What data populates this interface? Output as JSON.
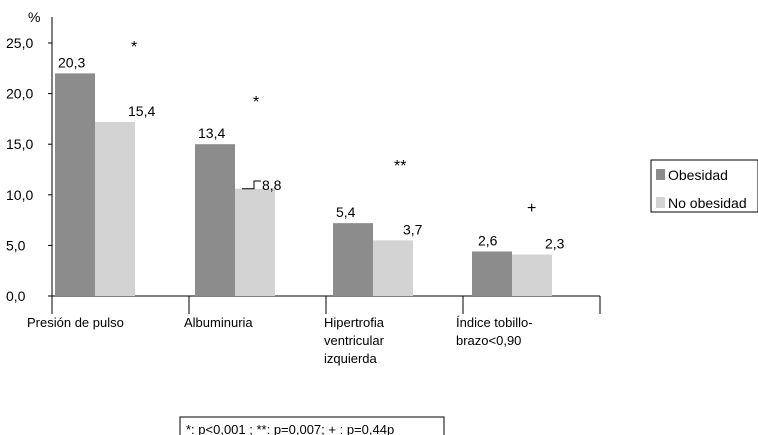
{
  "chart_data": {
    "type": "bar",
    "ylabel": "%",
    "ylim": [
      0,
      25
    ],
    "yticks": [
      "0,0",
      "5,0",
      "10,0",
      "15,0",
      "20,0",
      "25,0"
    ],
    "categories": [
      [
        "Presión de pulso"
      ],
      [
        "Albuminuria"
      ],
      [
        "Hipertrofia",
        "ventricular",
        "izquierda"
      ],
      [
        "Índice tobillo-",
        "brazo<0,90"
      ]
    ],
    "series": [
      {
        "name": "Obesidad",
        "color": "#8c8c8c",
        "values": [
          22.0,
          15.0,
          7.2,
          4.4
        ],
        "labels": [
          "20,3",
          "13,4",
          "5,4",
          "2,6"
        ]
      },
      {
        "name": "No obesidad",
        "color": "#d3d3d3",
        "values": [
          17.2,
          10.6,
          5.5,
          4.1
        ],
        "labels": [
          "15,4",
          "8,8",
          "3,7",
          "2,3"
        ]
      }
    ],
    "significance": [
      "*",
      "*",
      "**",
      "+"
    ],
    "legend_position": "right",
    "footnote": "*: p<0,001 ; **: p=0,007; + : p=0,44p"
  }
}
